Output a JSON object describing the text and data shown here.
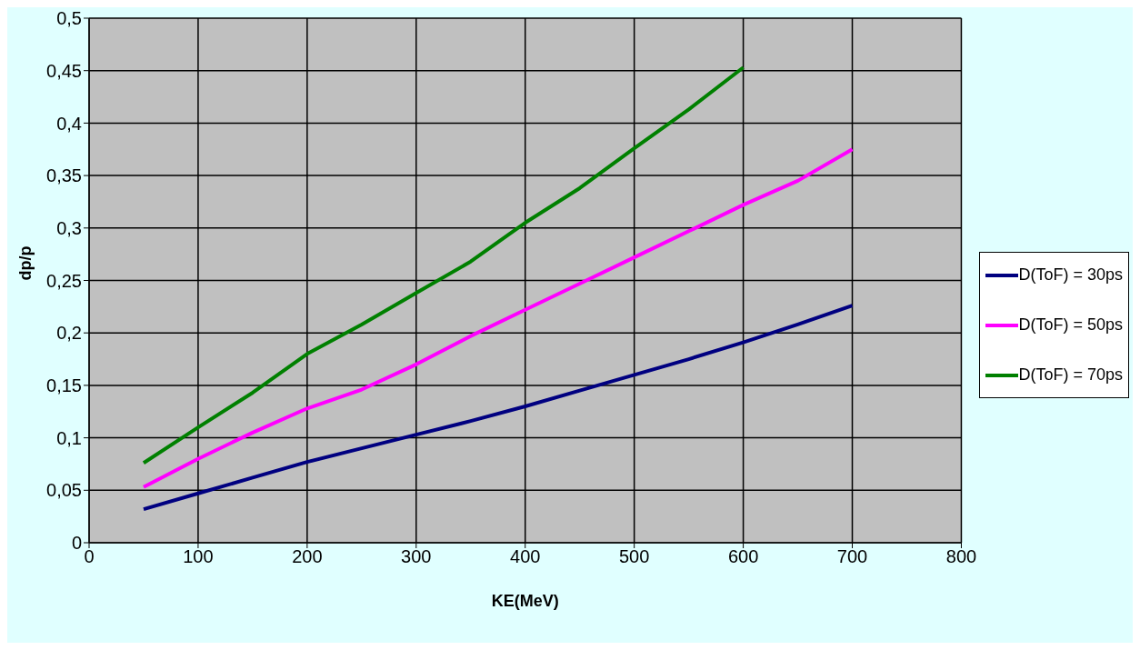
{
  "chart_data": {
    "type": "line",
    "xlabel": "KE(MeV)",
    "ylabel": "dp/p",
    "x": [
      50,
      100,
      150,
      200,
      250,
      300,
      350,
      400,
      450,
      500,
      550,
      600,
      650,
      700
    ],
    "series": [
      {
        "name": "D(ToF) = 30ps",
        "color": "#000080",
        "values": [
          0.032,
          0.047,
          0.062,
          0.077,
          0.09,
          0.103,
          0.116,
          0.13,
          0.145,
          0.16,
          0.175,
          0.191,
          0.208,
          0.226
        ]
      },
      {
        "name": "D(ToF) = 50ps",
        "color": "#ff00ff",
        "values": [
          0.053,
          0.08,
          0.105,
          0.128,
          0.146,
          0.17,
          0.197,
          0.222,
          0.247,
          0.272,
          0.297,
          0.322,
          0.345,
          0.375
        ]
      },
      {
        "name": "D(ToF) = 70ps",
        "color": "#008000",
        "values": [
          0.076,
          0.11,
          0.143,
          0.18,
          0.208,
          0.238,
          0.268,
          0.305,
          0.338,
          0.376,
          0.413,
          0.453,
          null,
          null
        ]
      }
    ],
    "xlim": [
      0,
      800
    ],
    "xticks": [
      0,
      100,
      200,
      300,
      400,
      500,
      600,
      700,
      800
    ],
    "ylim": [
      0,
      0.5
    ],
    "yticks": [
      0,
      {
        "value": 0.05,
        "label": "0,05"
      },
      {
        "value": 0.1,
        "label": "0,1"
      },
      {
        "value": 0.15,
        "label": "0,15"
      },
      {
        "value": 0.2,
        "label": "0,2"
      },
      {
        "value": 0.25,
        "label": "0,25"
      },
      {
        "value": 0.3,
        "label": "0,3"
      },
      {
        "value": 0.35,
        "label": "0,35"
      },
      {
        "value": 0.4,
        "label": "0,4"
      },
      {
        "value": 0.45,
        "label": "0,45"
      },
      {
        "value": 0.5,
        "label": "0,5"
      }
    ],
    "grid": true,
    "legend": "right",
    "marker": "none",
    "line_style": "solid"
  }
}
